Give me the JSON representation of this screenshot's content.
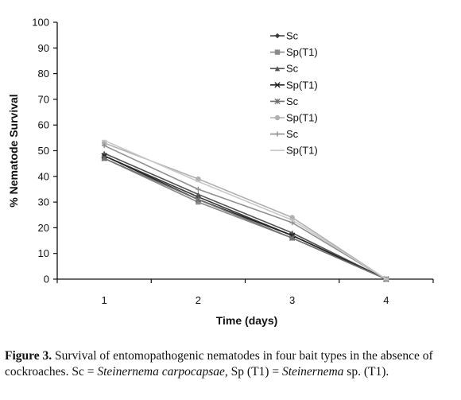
{
  "chart_data": {
    "type": "line",
    "x": [
      1,
      2,
      3,
      4
    ],
    "xlabel": "Time (days)",
    "ylabel": "% Nematode Survival",
    "ylim": [
      0,
      100
    ],
    "yticks": [
      0,
      10,
      20,
      30,
      40,
      50,
      60,
      70,
      80,
      90,
      100
    ],
    "xticks": [
      "1",
      "2",
      "3",
      "4"
    ],
    "legend_position": "top-right",
    "series": [
      {
        "name": "Sc",
        "values": [
          48,
          32,
          17,
          0
        ],
        "color": "#3a3a3a",
        "marker": "diamond"
      },
      {
        "name": "Sp(T1)",
        "values": [
          47,
          30,
          16,
          0
        ],
        "color": "#8a8a8a",
        "marker": "square"
      },
      {
        "name": "Sc",
        "values": [
          49,
          33,
          18,
          0
        ],
        "color": "#555555",
        "marker": "triangle"
      },
      {
        "name": "Sp(T1)",
        "values": [
          48,
          31,
          17,
          0
        ],
        "color": "#222222",
        "marker": "x"
      },
      {
        "name": "Sc",
        "values": [
          47,
          31,
          16,
          0
        ],
        "color": "#707070",
        "marker": "star"
      },
      {
        "name": "Sp(T1)",
        "values": [
          53,
          39,
          24,
          0
        ],
        "color": "#b0b0b0",
        "marker": "circle"
      },
      {
        "name": "Sc",
        "values": [
          52,
          35,
          22,
          0
        ],
        "color": "#909090",
        "marker": "plus"
      },
      {
        "name": "Sp(T1)",
        "values": [
          54,
          38,
          23,
          0
        ],
        "color": "#c8c8c8",
        "marker": "dash"
      }
    ]
  },
  "caption": {
    "label": "Figure 3.",
    "text1": " Survival of entomopathogenic nematodes in four bait types in the absence of cockroaches. Sc = ",
    "species1": "Steinernema carpocapsae",
    "text2": ", Sp (T1) = ",
    "species2": "Steinernema",
    "text3": " sp. (T1)."
  }
}
